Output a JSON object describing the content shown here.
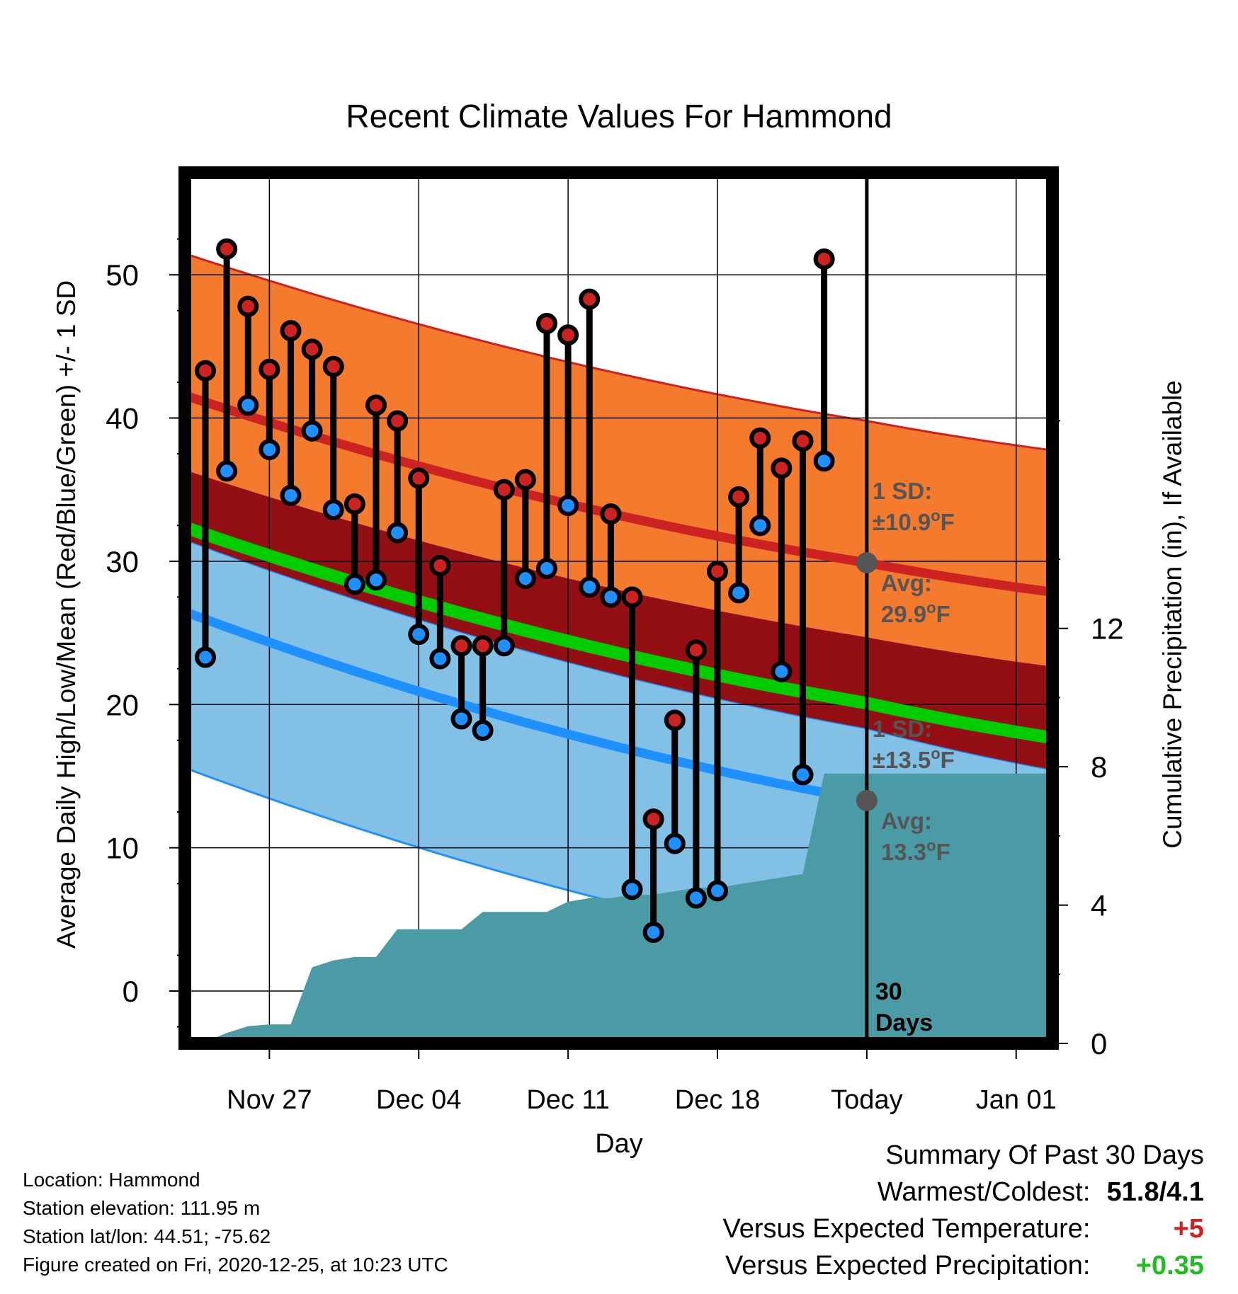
{
  "chart_data": {
    "type": "line",
    "title": "Recent Climate Values For Hammond",
    "xlabel": "Day",
    "ylabel": "Average Daily High/Low/Mean (Red/Blue/Green) +/- 1 SD",
    "y2label": "Cumulative Precipitation (in), If Available",
    "ylim": [
      -3.5,
      57
    ],
    "y2lim": [
      0,
      19.4
    ],
    "yticks": [
      "0",
      "10",
      "20",
      "30",
      "40",
      "50"
    ],
    "y2ticks": [
      "0",
      "4",
      "8",
      "12"
    ],
    "x_tick_labels": [
      "Nov 27",
      "Dec 04",
      "Dec 11",
      "Dec 18",
      "Today",
      "Jan 01"
    ],
    "grid": true,
    "today_marker": {
      "label_line1": "30",
      "label_line2": "Days"
    },
    "observed": {
      "dates": [
        "Nov 24",
        "Nov 25",
        "Nov 26",
        "Nov 27",
        "Nov 28",
        "Nov 29",
        "Nov 30",
        "Dec 01",
        "Dec 02",
        "Dec 03",
        "Dec 04",
        "Dec 05",
        "Dec 06",
        "Dec 07",
        "Dec 08",
        "Dec 09",
        "Dec 10",
        "Dec 11",
        "Dec 12",
        "Dec 13",
        "Dec 14",
        "Dec 15",
        "Dec 16",
        "Dec 17",
        "Dec 18",
        "Dec 19",
        "Dec 20",
        "Dec 21",
        "Dec 22",
        "Dec 23",
        "Dec 24"
      ],
      "highs": [
        43.3,
        51.8,
        47.8,
        43.4,
        46.1,
        44.8,
        43.6,
        34.0,
        40.9,
        39.8,
        35.8,
        29.7,
        24.1,
        24.1,
        35.0,
        35.7,
        46.6,
        45.8,
        48.3,
        33.3,
        27.5,
        12.0,
        18.9,
        23.8,
        29.3,
        34.5,
        38.6,
        36.5,
        38.4,
        51.1,
        null
      ],
      "lows": [
        23.3,
        36.3,
        40.9,
        37.8,
        34.6,
        39.1,
        33.6,
        28.4,
        28.7,
        32.0,
        24.9,
        23.2,
        19.0,
        18.2,
        24.1,
        28.8,
        29.5,
        33.9,
        28.2,
        27.5,
        7.1,
        4.1,
        10.3,
        6.5,
        7.0,
        27.8,
        32.5,
        22.3,
        15.1,
        37.0,
        null
      ]
    },
    "normal_high": {
      "start": 41.6,
      "today": 29.9,
      "end": 27.7,
      "sd_label": "1 SD:",
      "sd_value": "±10.9",
      "avg_label": "Avg:",
      "avg_value": "29.9",
      "unit": "°F"
    },
    "normal_low": {
      "start": 26.5,
      "today": 13.3,
      "end": 10.2,
      "sd_label": "1 SD:",
      "sd_value": "±13.5",
      "avg_label": "Avg:",
      "avg_value": "13.3",
      "unit": "°F"
    },
    "normal_mean": {
      "start": 32.4,
      "today": 20.1,
      "end": 17.5
    },
    "cumulative_precip_in": [
      0.05,
      0.3,
      0.5,
      0.55,
      0.55,
      2.2,
      2.4,
      2.5,
      2.5,
      3.3,
      3.3,
      3.3,
      3.3,
      3.8,
      3.8,
      3.8,
      3.8,
      4.1,
      4.2,
      4.2,
      4.3,
      4.3,
      4.4,
      4.5,
      4.5,
      4.6,
      4.7,
      4.8,
      4.9,
      7.8,
      7.8
    ],
    "colors": {
      "high": "#cc2222",
      "low": "#1e90ff",
      "mean": "#00cc00",
      "high_band": "#f47a2e",
      "low_band": "#82c0e6",
      "overlap": "#940f14",
      "precip": "#4a9ba5"
    }
  },
  "footer": {
    "location": "Location: Hammond",
    "elevation": "Station elevation: 111.95 m",
    "latlon": "Station lat/lon: 44.51; -75.62",
    "created": "Figure created on Fri, 2020-12-25, at 10:23 UTC"
  },
  "summary": {
    "title": "Summary Of Past 30 Days",
    "warmest_label": "Warmest/Coldest:",
    "warmest_value": "51.8/4.1",
    "temp_label": "Versus Expected Temperature:",
    "temp_value": "+5",
    "temp_color": "#cc2222",
    "precip_label": "Versus Expected Precipitation:",
    "precip_value": "+0.35",
    "precip_color": "#22bb22"
  }
}
